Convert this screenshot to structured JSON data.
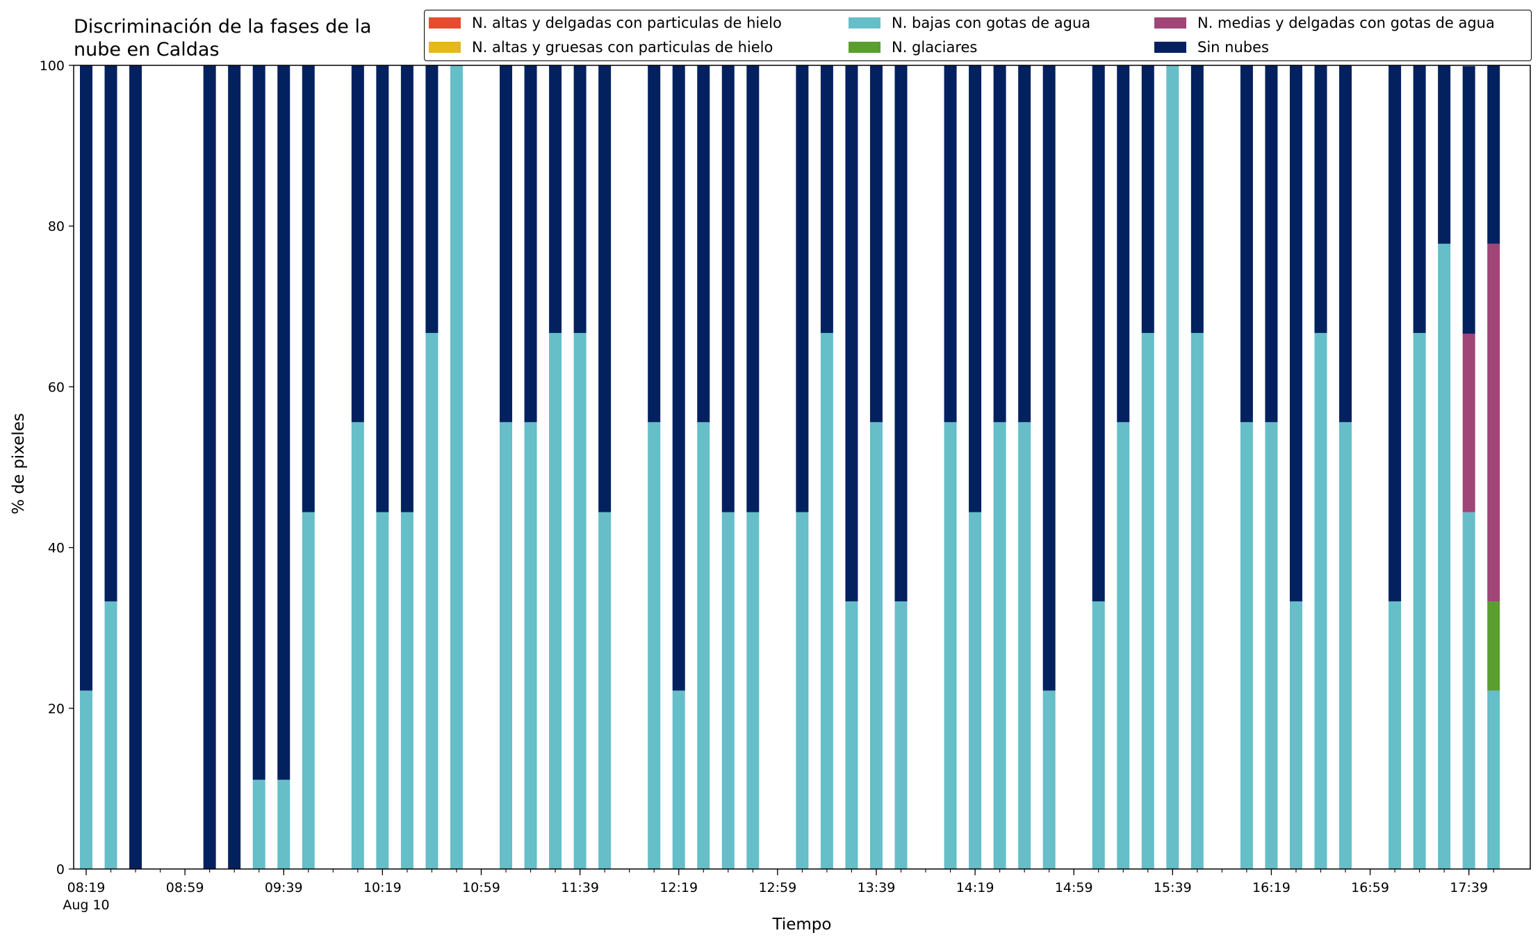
{
  "title_lines": [
    "Discriminación de la fases de la",
    "nube en Caldas"
  ],
  "chart_data": {
    "type": "bar",
    "stacked": true,
    "title": "Discriminación de la fases de la nube en Caldas",
    "xlabel": "Tiempo",
    "ylabel": "% de pixeles",
    "ylim": [
      0,
      100
    ],
    "yticks": [
      0,
      20,
      40,
      60,
      80,
      100
    ],
    "xticks": [
      {
        "label": "08:19",
        "sub": "Aug 10",
        "slot": 0
      },
      {
        "label": "08:59",
        "slot": 4
      },
      {
        "label": "09:39",
        "slot": 8
      },
      {
        "label": "10:19",
        "slot": 12
      },
      {
        "label": "10:59",
        "slot": 16
      },
      {
        "label": "11:39",
        "slot": 20
      },
      {
        "label": "12:19",
        "slot": 24
      },
      {
        "label": "12:59",
        "slot": 28
      },
      {
        "label": "13:39",
        "slot": 32
      },
      {
        "label": "14:19",
        "slot": 36
      },
      {
        "label": "14:59",
        "slot": 40
      },
      {
        "label": "15:39",
        "slot": 44
      },
      {
        "label": "16:19",
        "slot": 48
      },
      {
        "label": "16:59",
        "slot": 52
      },
      {
        "label": "17:39",
        "slot": 56
      }
    ],
    "slot_count": 58,
    "bar_slots": [
      0,
      1,
      2,
      5,
      6,
      7,
      8,
      9,
      11,
      12,
      13,
      14,
      15,
      17,
      18,
      19,
      20,
      21,
      23,
      24,
      25,
      26,
      27,
      29,
      30,
      31,
      32,
      33,
      35,
      36,
      37,
      38,
      39,
      41,
      42,
      43,
      44,
      45,
      47,
      48,
      49,
      50,
      51,
      53,
      54,
      55,
      56,
      57
    ],
    "legend_position": "top",
    "series": [
      {
        "name": "N. altas y delgadas con particulas de hielo",
        "color": "#e84a2f",
        "values": [
          0,
          0,
          0,
          0,
          0,
          0,
          0,
          0,
          0,
          0,
          0,
          0,
          0,
          0,
          0,
          0,
          0,
          0,
          0,
          0,
          0,
          0,
          0,
          0,
          0,
          0,
          0,
          0,
          0,
          0,
          0,
          0,
          0,
          0,
          0,
          0,
          0,
          0,
          0,
          0,
          0,
          0,
          0,
          0,
          0,
          0,
          0,
          0
        ]
      },
      {
        "name": "N. altas y gruesas con particulas de hielo",
        "color": "#e5b81b",
        "values": [
          0,
          0,
          0,
          0,
          0,
          0,
          0,
          0,
          0,
          0,
          0,
          0,
          0,
          0,
          0,
          0,
          0,
          0,
          0,
          0,
          0,
          0,
          0,
          0,
          0,
          0,
          0,
          0,
          0,
          0,
          0,
          0,
          0,
          0,
          0,
          0,
          0,
          0,
          0,
          0,
          0,
          0,
          0,
          0,
          0,
          0,
          0,
          0
        ]
      },
      {
        "name": "N. bajas con gotas de agua",
        "color": "#66bec9",
        "values": [
          22.2,
          33.3,
          0,
          0,
          0,
          11.1,
          11.1,
          44.4,
          55.6,
          44.4,
          44.4,
          66.7,
          100,
          55.6,
          55.6,
          66.7,
          66.7,
          44.4,
          55.6,
          22.2,
          55.6,
          44.4,
          44.4,
          44.4,
          66.7,
          33.3,
          55.6,
          33.3,
          55.6,
          44.4,
          55.6,
          55.6,
          22.2,
          33.3,
          55.6,
          66.7,
          100,
          66.7,
          55.6,
          55.6,
          33.3,
          66.7,
          55.6,
          33.3,
          66.7,
          77.8,
          44.4,
          22.2
        ]
      },
      {
        "name": "N. glaciares",
        "color": "#5a9e2f",
        "values": [
          0,
          0,
          0,
          0,
          0,
          0,
          0,
          0,
          0,
          0,
          0,
          0,
          0,
          0,
          0,
          0,
          0,
          0,
          0,
          0,
          0,
          0,
          0,
          0,
          0,
          0,
          0,
          0,
          0,
          0,
          0,
          0,
          0,
          0,
          0,
          0,
          0,
          0,
          0,
          0,
          0,
          0,
          0,
          0,
          0,
          0,
          0,
          11.1
        ]
      },
      {
        "name": "N. medias y delgadas con gotas de agua",
        "color": "#a04577",
        "values": [
          0,
          0,
          0,
          0,
          0,
          0,
          0,
          0,
          0,
          0,
          0,
          0,
          0,
          0,
          0,
          0,
          0,
          0,
          0,
          0,
          0,
          0,
          0,
          0,
          0,
          0,
          0,
          0,
          0,
          0,
          0,
          0,
          0,
          0,
          0,
          0,
          0,
          0,
          0,
          0,
          0,
          0,
          0,
          0,
          0,
          0,
          22.2,
          44.5
        ]
      },
      {
        "name": "Sin nubes",
        "color": "#03215f",
        "values": [
          77.8,
          66.7,
          100,
          100,
          100,
          88.9,
          88.9,
          55.6,
          44.4,
          55.6,
          55.6,
          33.3,
          0,
          44.4,
          44.4,
          33.3,
          33.3,
          55.6,
          44.4,
          77.8,
          44.4,
          55.6,
          55.6,
          55.6,
          33.3,
          66.7,
          44.4,
          66.7,
          44.4,
          55.6,
          44.4,
          44.4,
          77.8,
          66.7,
          44.4,
          33.3,
          0,
          33.3,
          44.4,
          44.4,
          66.7,
          33.3,
          44.4,
          66.7,
          33.3,
          22.2,
          33.3,
          22.2
        ]
      }
    ],
    "legend_order": [
      0,
      1,
      2,
      3,
      4,
      5
    ]
  }
}
